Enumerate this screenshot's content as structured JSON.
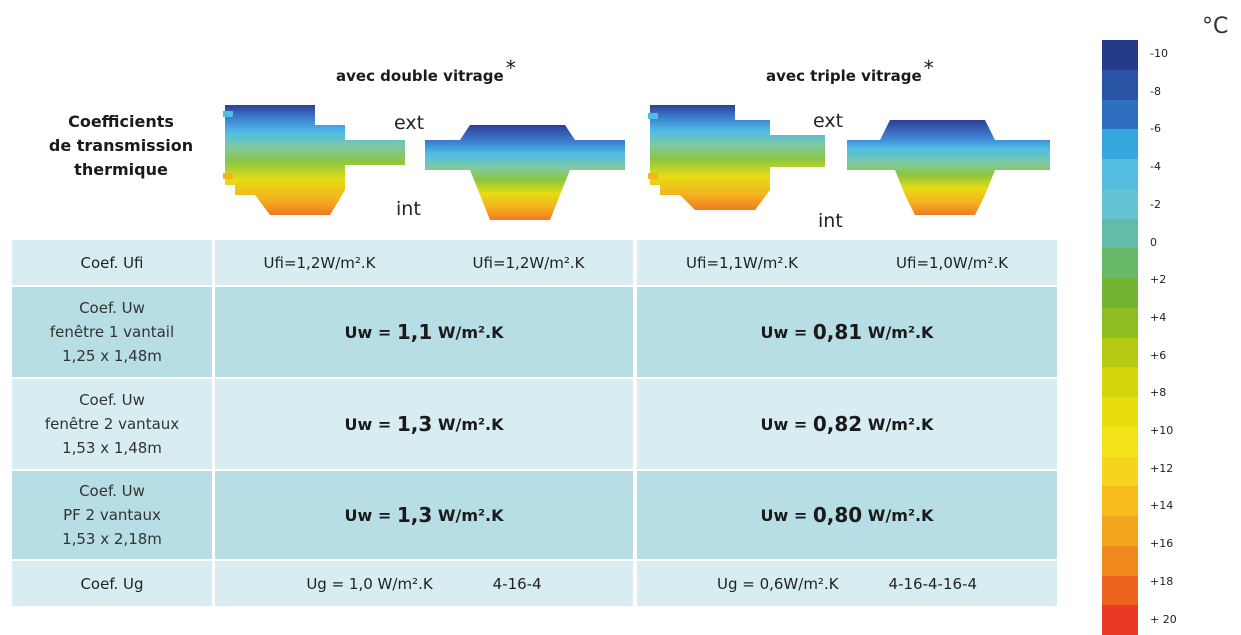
{
  "header": {
    "double_title": "avec double vitrage",
    "triple_title": "avec triple vitrage",
    "star": "*",
    "coef_title_lines": [
      "Coefficients",
      "de transmission",
      "thermique"
    ],
    "ext_label": "ext",
    "int_label": "int"
  },
  "table": {
    "rows": [
      {
        "label_lines": [
          "Coef. Ufi"
        ],
        "double": [
          "Ufi=1,2W/m².K",
          "Ufi=1,2W/m².K"
        ],
        "triple": [
          "Ufi=1,1W/m².K",
          "Ufi=1,0W/m².K"
        ]
      },
      {
        "label_lines": [
          "Coef. Uw",
          "fenêtre 1 vantail",
          "1,25 x 1,48m"
        ],
        "double": {
          "prefix": "Uw = ",
          "value": "1,1",
          "unit": " W/m².K"
        },
        "triple": {
          "prefix": "Uw = ",
          "value": "0,81",
          "unit": " W/m².K"
        }
      },
      {
        "label_lines": [
          "Coef. Uw",
          "fenêtre 2 vantaux",
          "1,53 x 1,48m"
        ],
        "double": {
          "prefix": "Uw = ",
          "value": "1,3",
          "unit": " W/m².K"
        },
        "triple": {
          "prefix": "Uw = ",
          "value": "0,82",
          "unit": " W/m².K"
        }
      },
      {
        "label_lines": [
          "Coef. Uw",
          "PF 2 vantaux",
          "1,53 x 2,18m"
        ],
        "double": {
          "prefix": "Uw = ",
          "value": "1,3",
          "unit": " W/m².K"
        },
        "triple": {
          "prefix": "Uw = ",
          "value": "0,80",
          "unit": " W/m².K"
        }
      },
      {
        "label_lines": [
          "Coef. Ug"
        ],
        "double": [
          "Ug = 1,0 W/m².K",
          "4-16-4"
        ],
        "triple": [
          "Ug = 0,6W/m².K",
          "4-16-4-16-4"
        ]
      }
    ]
  },
  "legend": {
    "unit": "°C",
    "ticks": [
      "-10",
      "-8",
      "-6",
      "-4",
      "-2",
      "0",
      "+2",
      "+4",
      "+6",
      "+8",
      "+10",
      "+12",
      "+14",
      "+16",
      "+18",
      "+ 20"
    ],
    "colors": [
      "#263a8a",
      "#2a55a6",
      "#2f6fbf",
      "#35a6de",
      "#55bde0",
      "#63c4d6",
      "#63bca8",
      "#69b96b",
      "#72b534",
      "#8fbe22",
      "#b4c814",
      "#d4d50a",
      "#e9de0d",
      "#f3e41a",
      "#f6d31c",
      "#f6bd1d",
      "#f4a51e",
      "#f18a1e",
      "#ed6420",
      "#e83a22"
    ]
  },
  "profile_colors": {
    "cold_dark": "#2d3f94",
    "cold": "#3d7fd0",
    "cool": "#4fbde6",
    "mid": "#7ec9a2",
    "green": "#8cc63f",
    "yellow": "#e6dc14",
    "warm": "#f4b41f",
    "hot": "#ef7a22"
  }
}
